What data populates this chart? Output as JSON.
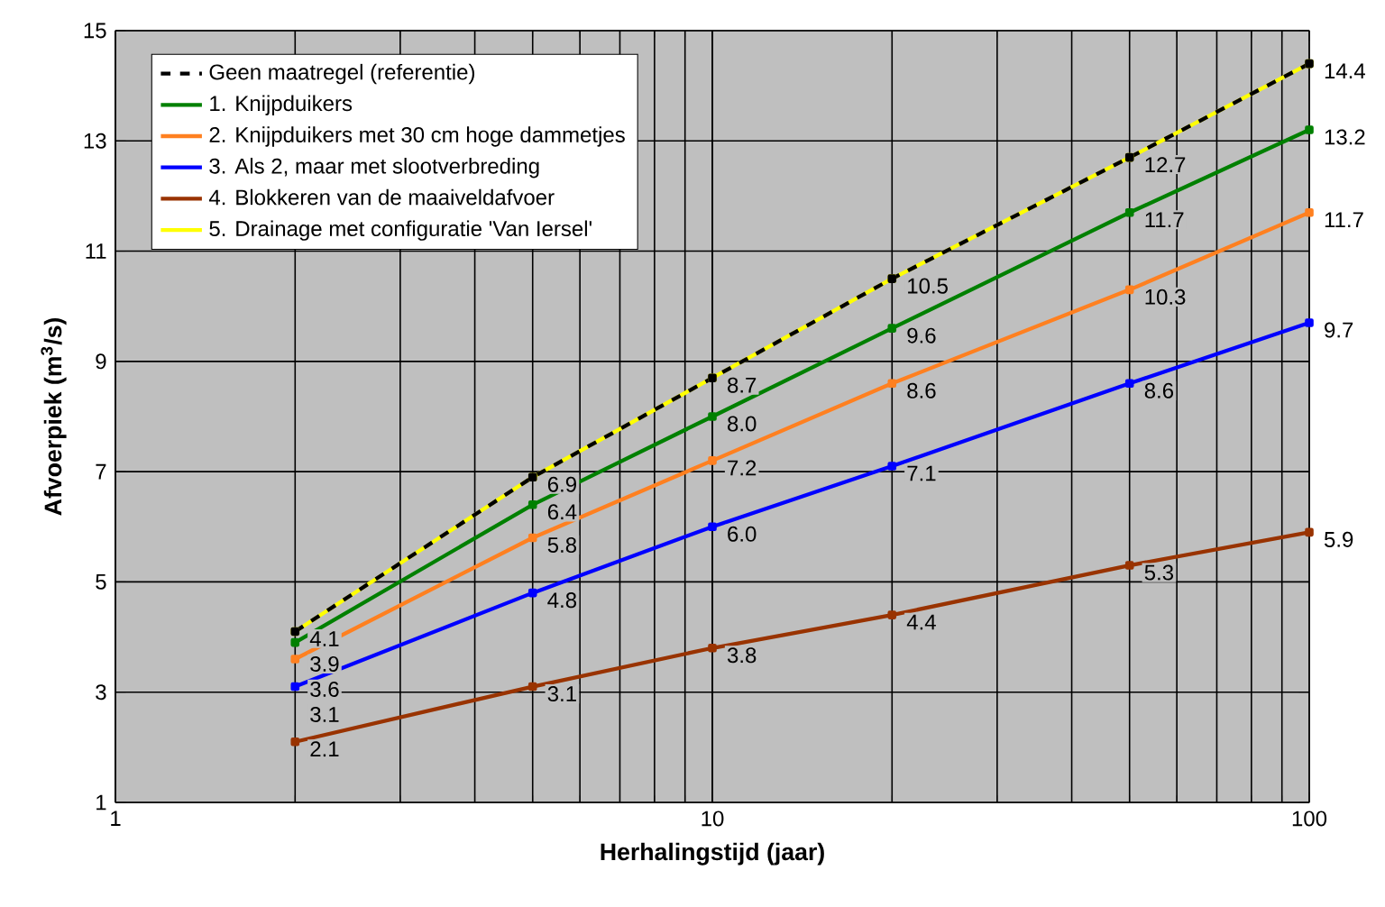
{
  "chart_data": {
    "type": "line",
    "xlabel": "Herhalingstijd (jaar)",
    "ylabel": "Afvoerpiek (m$^{3}$/s)",
    "log": "x",
    "xlim": [
      1,
      100
    ],
    "xticks": [
      1,
      10,
      100
    ],
    "ylim": [
      1,
      15
    ],
    "yticks": [
      1,
      3,
      5,
      7,
      9,
      11,
      13,
      15
    ],
    "grid": true,
    "legend": "top left",
    "marker": "square",
    "x": [
      2,
      5,
      10,
      20,
      50,
      100
    ],
    "series": [
      {
        "name": "Geen maatregel (referentie)",
        "color": "#000000",
        "line_style": "dashed",
        "values": [
          4.1,
          6.9,
          8.7,
          10.5,
          12.7,
          14.4
        ]
      },
      {
        "name": "1. Knijpduikers",
        "color": "#008000",
        "values": [
          3.9,
          6.4,
          8.0,
          9.6,
          11.7,
          13.2
        ],
        "value_labels": [
          "3.9",
          "6.4",
          "8.0",
          "9.6",
          "11.7",
          "13.2"
        ]
      },
      {
        "name": "2. Knijpduikers met 30 cm hoge dammetjes",
        "color": "#ff8020",
        "values": [
          3.6,
          5.8,
          7.2,
          8.6,
          10.3,
          11.7
        ],
        "value_labels": [
          "3.6",
          "5.8",
          "7.2",
          "8.6",
          "10.3",
          "11.7"
        ]
      },
      {
        "name": "3. Als 2, maar met slootverbreding",
        "color": "#0000ff",
        "values": [
          3.1,
          4.8,
          6.0,
          7.1,
          8.6,
          9.7
        ],
        "value_labels": [
          "3.1",
          "4.8",
          "6.0",
          "7.1",
          "8.6",
          "9.7"
        ]
      },
      {
        "name": "4. Blokkeren van de maaiveldafvoer",
        "color": "#993300",
        "values": [
          2.1,
          3.1,
          3.8,
          4.4,
          5.3,
          5.9
        ],
        "value_labels": [
          "2.1",
          "3.1",
          "3.8",
          "4.4",
          "5.3",
          "5.9"
        ]
      },
      {
        "name": "5. Drainage met configuratie 'Van Iersel'",
        "color": "#ffff00",
        "values": [
          4.1,
          6.9,
          8.7,
          10.5,
          12.7,
          14.4
        ],
        "value_labels": [
          "4.1",
          "6.9",
          "8.7",
          "10.5",
          "12.7",
          "14.4"
        ]
      }
    ]
  }
}
